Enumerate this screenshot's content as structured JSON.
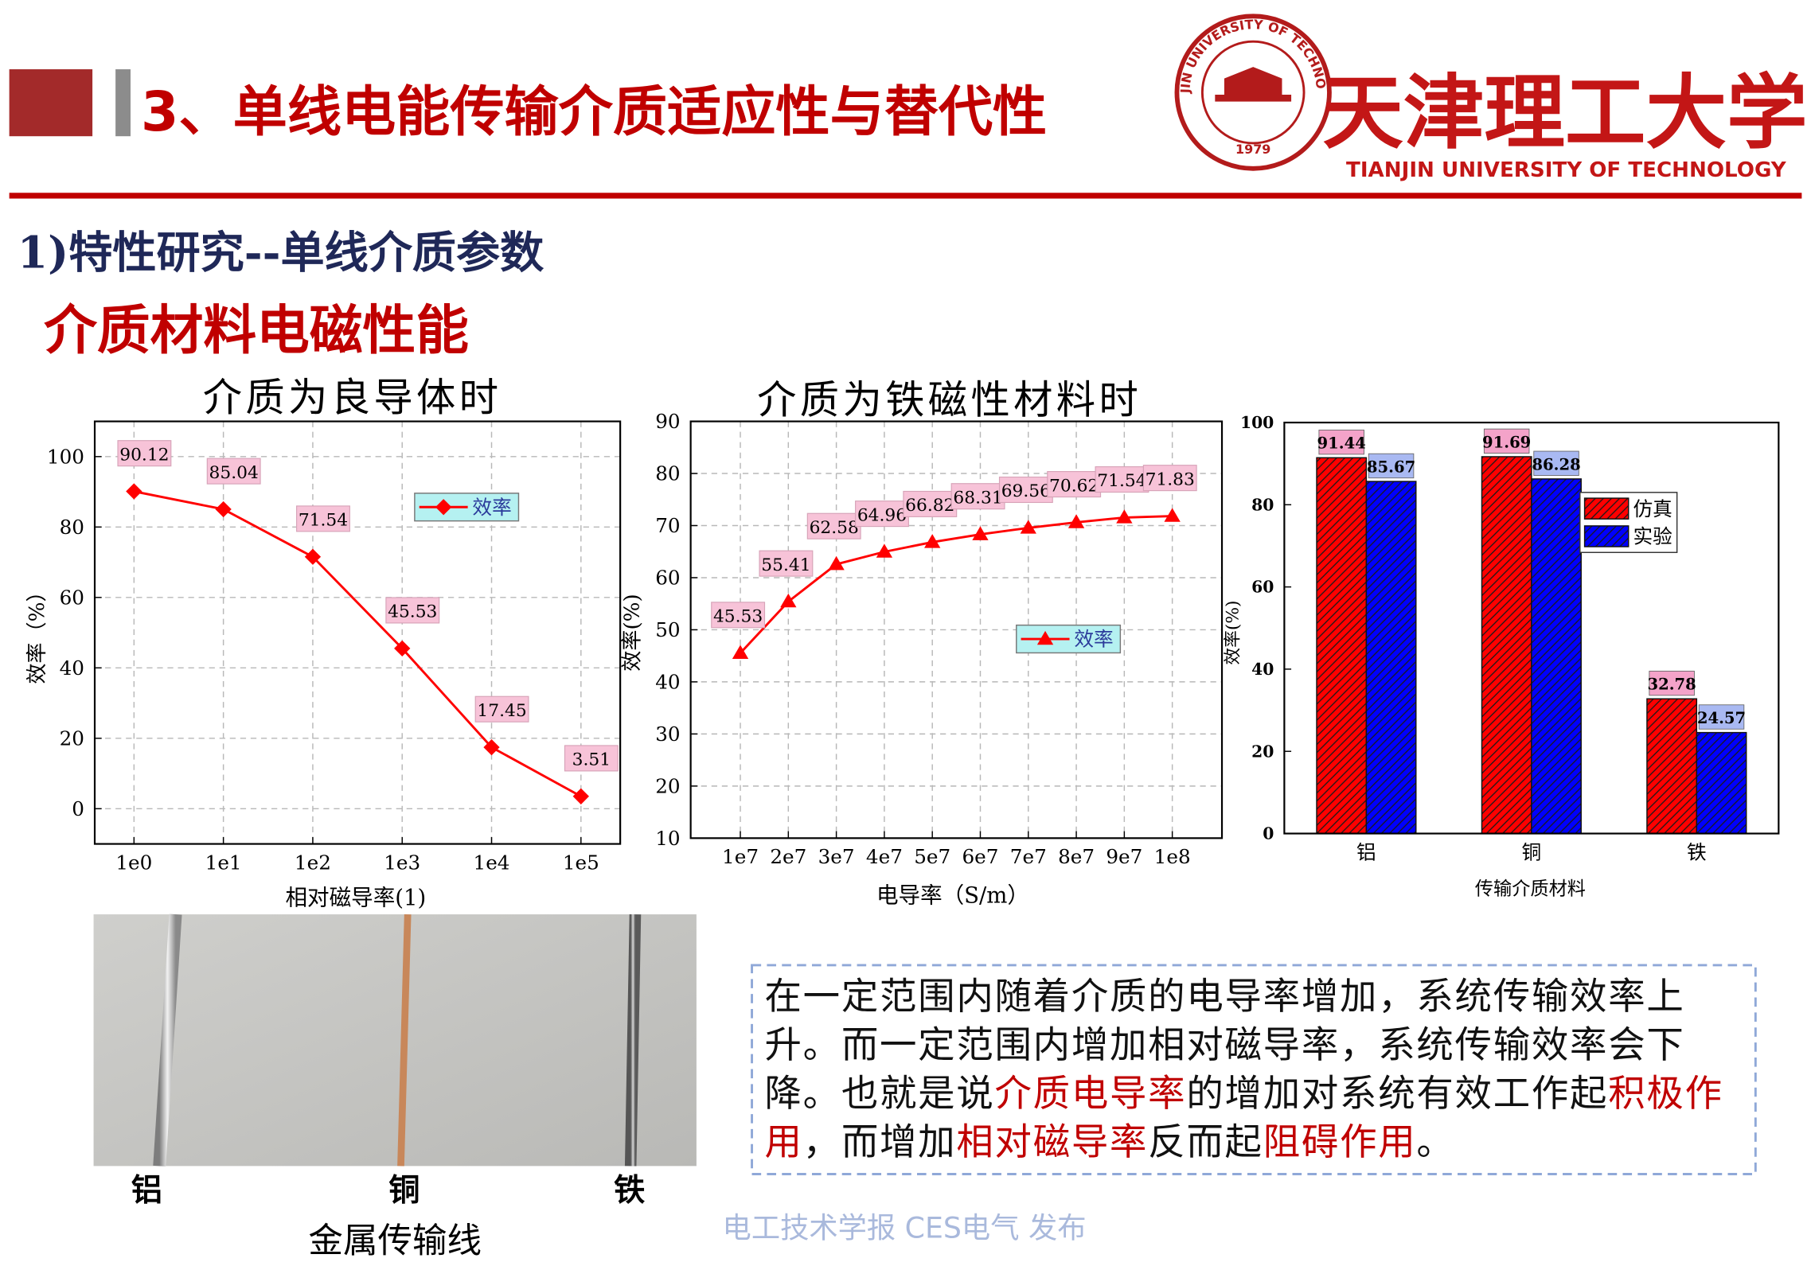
{
  "header": {
    "title": "3、单线电能传输介质适应性与替代性",
    "seal_text": "TIANJIN UNIVERSITY OF TECHNOLOGY",
    "seal_year": "1979",
    "logo_text": "天津理工大学",
    "logo_subtitle": "TIANJIN UNIVERSITY OF TECHNOLOGY"
  },
  "section": "1)特性研究--单线介质参数",
  "subsection": "介质材料电磁性能",
  "chart_data": [
    {
      "type": "line",
      "title": "介质为良导体时",
      "x_label": "相对磁导率(1)",
      "y_label": "效率（%）",
      "categories": [
        "1e0",
        "1e1",
        "1e2",
        "1e3",
        "1e4",
        "1e5"
      ],
      "series": [
        {
          "name": "效率",
          "color": "#ff0000",
          "marker": "diamond",
          "values": [
            90.12,
            85.04,
            71.54,
            45.53,
            17.45,
            3.51
          ]
        }
      ],
      "ylim": [
        -10,
        110
      ],
      "yticks": [
        0,
        20,
        40,
        60,
        80,
        100
      ],
      "grid": true,
      "data_labels": true,
      "legend": "upper right"
    },
    {
      "type": "line",
      "title": "介质为铁磁性材料时",
      "x_label": "电导率（S/m）",
      "y_label": "效率(%)",
      "categories": [
        "1e7",
        "2e7",
        "3e7",
        "4e7",
        "5e7",
        "6e7",
        "7e7",
        "8e7",
        "9e7",
        "1e8"
      ],
      "series": [
        {
          "name": "效率",
          "color": "#ff0000",
          "marker": "triangle",
          "values": [
            45.53,
            55.41,
            62.58,
            64.96,
            66.82,
            68.31,
            69.56,
            70.62,
            71.54,
            71.83
          ]
        }
      ],
      "ylim": [
        10,
        90
      ],
      "yticks": [
        10,
        20,
        30,
        40,
        50,
        60,
        70,
        80,
        90
      ],
      "grid": true,
      "data_labels": true,
      "legend": "center right"
    },
    {
      "type": "bar",
      "x_label": "传输介质材料",
      "y_label": "效率(%)",
      "categories": [
        "铝",
        "铜",
        "铁"
      ],
      "series": [
        {
          "name": "仿真",
          "color": "#ff0000",
          "values": [
            91.44,
            91.69,
            32.78
          ]
        },
        {
          "name": "实验",
          "color": "#0000ff",
          "values": [
            85.67,
            86.28,
            24.57
          ]
        }
      ],
      "ylim": [
        0,
        100
      ],
      "yticks": [
        0,
        20,
        40,
        60,
        80,
        100
      ],
      "grid": false,
      "data_labels": true,
      "legend": "upper right"
    }
  ],
  "photo": {
    "labels": [
      "铝",
      "铜",
      "铁"
    ],
    "caption": "金属传输线"
  },
  "note": {
    "segments": [
      {
        "text": "在一定范围内随着介质的电导率增加，系统传输效率上升。而一定范围内增加相对磁导率，系统传输效率会下降。也就是说",
        "highlight": false
      },
      {
        "text": "介质电导率",
        "highlight": true
      },
      {
        "text": "的增加对系统有效工作起",
        "highlight": false
      },
      {
        "text": "积极作用",
        "highlight": true
      },
      {
        "text": "，而增加",
        "highlight": false
      },
      {
        "text": "相对磁导率",
        "highlight": true
      },
      {
        "text": "反而起",
        "highlight": false
      },
      {
        "text": "阻碍作用",
        "highlight": true
      },
      {
        "text": "。",
        "highlight": false
      }
    ]
  },
  "watermark": "电工技术学报 CES电气 发布"
}
